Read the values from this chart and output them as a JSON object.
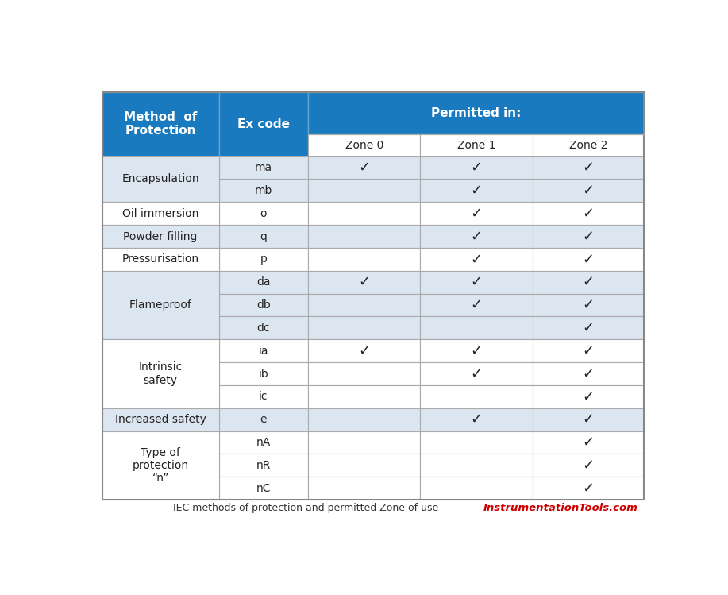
{
  "title": "IEC methods of protection and permitted Zone of use",
  "title_color": "#333333",
  "brand": "InstrumentationTools.com",
  "brand_color": "#cc0000",
  "header_bg": "#1a7abf",
  "header_text_color": "#ffffff",
  "col1_header": "Method  of\nProtection",
  "col2_header": "Ex code",
  "col3_header": "Permitted in:",
  "zone_headers": [
    "Zone 0",
    "Zone 1",
    "Zone 2"
  ],
  "row_bg_light": "#dce6f1",
  "row_bg_white": "#ffffff",
  "border_color": "#aaaaaa",
  "border_lw": 0.8,
  "rows": [
    {
      "group": "Encapsulation",
      "code": "ma",
      "zone0": true,
      "zone1": true,
      "zone2": true,
      "group_bg": "#dce6f1"
    },
    {
      "group": "",
      "code": "mb",
      "zone0": false,
      "zone1": true,
      "zone2": true,
      "group_bg": "#dce6f1"
    },
    {
      "group": "Oil immersion",
      "code": "o",
      "zone0": false,
      "zone1": true,
      "zone2": true,
      "group_bg": "#ffffff"
    },
    {
      "group": "Powder filling",
      "code": "q",
      "zone0": false,
      "zone1": true,
      "zone2": true,
      "group_bg": "#dce6f1"
    },
    {
      "group": "Pressurisation",
      "code": "p",
      "zone0": false,
      "zone1": true,
      "zone2": true,
      "group_bg": "#ffffff"
    },
    {
      "group": "Flameproof",
      "code": "da",
      "zone0": true,
      "zone1": true,
      "zone2": true,
      "group_bg": "#dce6f1"
    },
    {
      "group": "",
      "code": "db",
      "zone0": false,
      "zone1": true,
      "zone2": true,
      "group_bg": "#dce6f1"
    },
    {
      "group": "",
      "code": "dc",
      "zone0": false,
      "zone1": false,
      "zone2": true,
      "group_bg": "#dce6f1"
    },
    {
      "group": "Intrinsic\nsafety",
      "code": "ia",
      "zone0": true,
      "zone1": true,
      "zone2": true,
      "group_bg": "#ffffff"
    },
    {
      "group": "",
      "code": "ib",
      "zone0": false,
      "zone1": true,
      "zone2": true,
      "group_bg": "#ffffff"
    },
    {
      "group": "",
      "code": "ic",
      "zone0": false,
      "zone1": false,
      "zone2": true,
      "group_bg": "#ffffff"
    },
    {
      "group": "Increased safety",
      "code": "e",
      "zone0": false,
      "zone1": true,
      "zone2": true,
      "group_bg": "#dce6f1"
    },
    {
      "group": "Type of\nprotection\n“n”",
      "code": "nA",
      "zone0": false,
      "zone1": false,
      "zone2": true,
      "group_bg": "#ffffff"
    },
    {
      "group": "",
      "code": "nR",
      "zone0": false,
      "zone1": false,
      "zone2": true,
      "group_bg": "#ffffff"
    },
    {
      "group": "",
      "code": "nC",
      "zone0": false,
      "zone1": false,
      "zone2": true,
      "group_bg": "#ffffff"
    }
  ],
  "fig_width": 9.17,
  "fig_height": 7.49,
  "dpi": 100
}
